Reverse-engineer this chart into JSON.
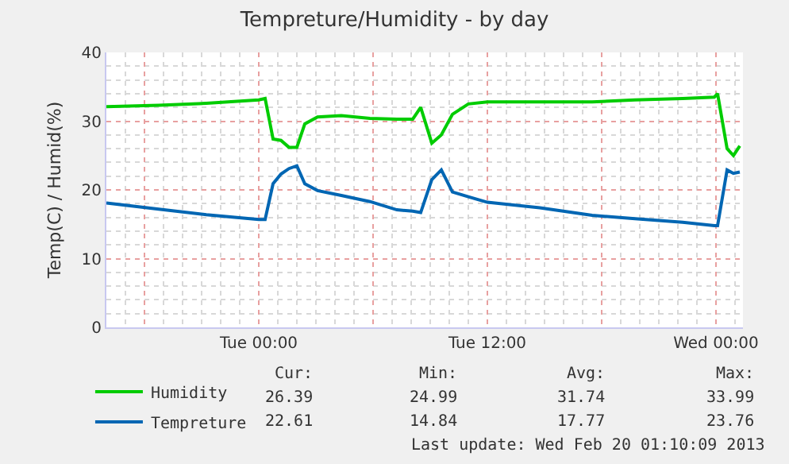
{
  "chart_data": {
    "type": "line",
    "title": "Tempreture/Humidity - by day",
    "ylabel": "Temp(C) / Humid(%)",
    "x": [
      "2013-02-18T16:00",
      "2013-02-18T18:45",
      "2013-02-18T21:15",
      "2013-02-19T00:00",
      "2013-02-19T00:20",
      "2013-02-19T00:45",
      "2013-02-19T01:10",
      "2013-02-19T01:35",
      "2013-02-19T02:00",
      "2013-02-19T02:25",
      "2013-02-19T03:05",
      "2013-02-19T04:20",
      "2013-02-19T05:50",
      "2013-02-19T07:15",
      "2013-02-19T08:05",
      "2013-02-19T08:30",
      "2013-02-19T09:05",
      "2013-02-19T09:35",
      "2013-02-19T10:10",
      "2013-02-19T11:00",
      "2013-02-19T12:00",
      "2013-02-19T14:45",
      "2013-02-19T17:30",
      "2013-02-19T19:45",
      "2013-02-19T22:15",
      "2013-02-19T23:55",
      "2013-02-20T00:05",
      "2013-02-20T00:35",
      "2013-02-20T00:55",
      "2013-02-20T01:15"
    ],
    "series": [
      {
        "name": "Humidity",
        "color": "#00cc00",
        "values": [
          32.1,
          32.3,
          32.6,
          33.1,
          33.3,
          27.4,
          27.2,
          26.2,
          26.2,
          29.6,
          30.6,
          30.8,
          30.4,
          30.3,
          30.3,
          32,
          26.8,
          28,
          31,
          32.5,
          32.8,
          32.8,
          32.8,
          33.1,
          33.3,
          33.5,
          34,
          26,
          25,
          26.4
        ]
      },
      {
        "name": "Tempreture",
        "color": "#0066b3",
        "values": [
          18.1,
          17.2,
          16.4,
          15.7,
          15.7,
          20.9,
          22.3,
          23.1,
          23.5,
          20.9,
          19.9,
          19.2,
          18.3,
          17.1,
          16.9,
          16.7,
          21.5,
          22.9,
          19.7,
          19,
          18.2,
          17.4,
          16.3,
          15.8,
          15.3,
          14.8,
          14.8,
          22.9,
          22.4,
          22.6
        ]
      }
    ],
    "xlim": [
      "2013-02-18T16:00",
      "2013-02-20T01:25"
    ],
    "xticks": [
      {
        "value": "2013-02-18T18:00",
        "label": null
      },
      {
        "value": "2013-02-19T00:00",
        "label": "Tue 00:00"
      },
      {
        "value": "2013-02-19T06:00",
        "label": null
      },
      {
        "value": "2013-02-19T12:00",
        "label": "Tue 12:00"
      },
      {
        "value": "2013-02-19T18:00",
        "label": null
      },
      {
        "value": "2013-02-20T00:00",
        "label": "Wed 00:00"
      }
    ],
    "ylim": [
      0,
      40
    ],
    "yticks": [
      0,
      10,
      20,
      30,
      40
    ],
    "grid": true,
    "legend": "bottom left",
    "annotations": [
      "Cur:",
      "Min:",
      "Avg:",
      "Max:",
      "26.39",
      "24.99",
      "31.74",
      "33.99",
      "22.61",
      "14.84",
      "17.77",
      "23.76",
      "Last update: Wed Feb 20 01:10:09 2013"
    ]
  }
}
